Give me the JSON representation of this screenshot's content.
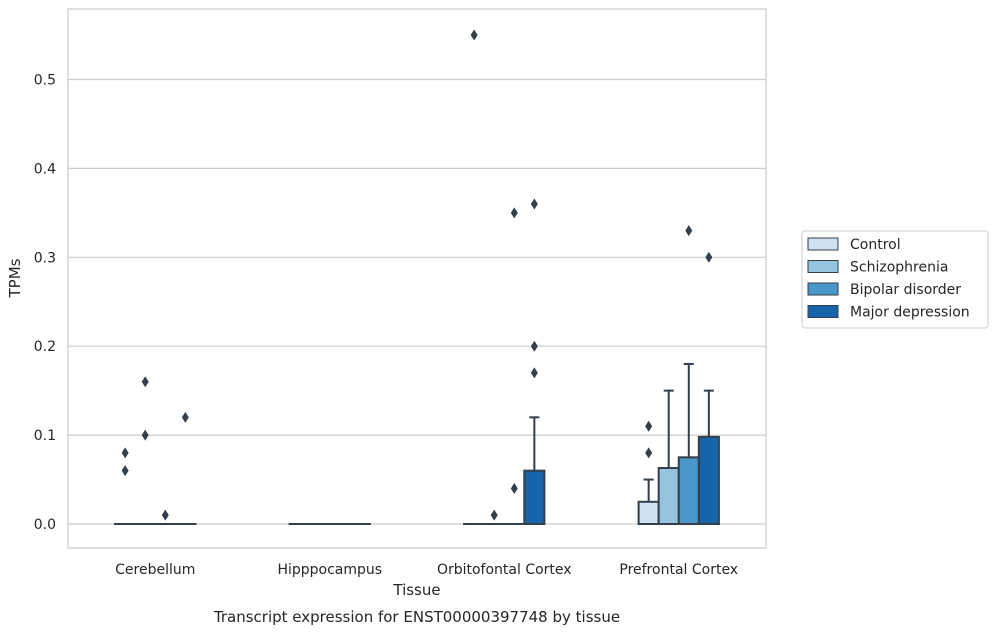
{
  "chart_data": {
    "type": "boxplot",
    "xlabel": "Tissue",
    "ylabel": "TPMs",
    "caption": "Transcript expression for ENST00000397748 by tissue",
    "ylim": [
      -0.027,
      0.58
    ],
    "yticks": [
      0.0,
      0.1,
      0.2,
      0.3,
      0.4,
      0.5
    ],
    "ytick_labels": [
      "0.0",
      "0.1",
      "0.2",
      "0.3",
      "0.4",
      "0.5"
    ],
    "grid": "horizontal",
    "legend_position": "center-right",
    "categories": [
      "Cerebellum",
      "Hipppocampus",
      "Orbitofontal Cortex",
      "Prefrontal Cortex"
    ],
    "series": [
      {
        "name": "Control",
        "color": "#d0e1f2",
        "boxes": [
          {
            "q1": 0,
            "median": 0,
            "q3": 0,
            "whisker_low": 0,
            "whisker_high": 0,
            "outliers": [
              0.06,
              0.08
            ]
          },
          {
            "q1": 0,
            "median": 0,
            "q3": 0,
            "whisker_low": 0,
            "whisker_high": 0,
            "outliers": []
          },
          {
            "q1": 0,
            "median": 0,
            "q3": 0,
            "whisker_low": 0,
            "whisker_high": 0,
            "outliers": [
              0.55
            ]
          },
          {
            "q1": 0,
            "median": 0,
            "q3": 0.025,
            "whisker_low": 0,
            "whisker_high": 0.05,
            "outliers": [
              0.08,
              0.11
            ]
          }
        ]
      },
      {
        "name": "Schizophrenia",
        "color": "#94c4df",
        "boxes": [
          {
            "q1": 0,
            "median": 0,
            "q3": 0,
            "whisker_low": 0,
            "whisker_high": 0,
            "outliers": [
              0.1,
              0.16
            ]
          },
          {
            "q1": 0,
            "median": 0,
            "q3": 0,
            "whisker_low": 0,
            "whisker_high": 0,
            "outliers": []
          },
          {
            "q1": 0,
            "median": 0,
            "q3": 0,
            "whisker_low": 0,
            "whisker_high": 0,
            "outliers": [
              0.01
            ]
          },
          {
            "q1": 0,
            "median": 0,
            "q3": 0.063,
            "whisker_low": 0,
            "whisker_high": 0.15,
            "outliers": []
          }
        ]
      },
      {
        "name": "Bipolar disorder",
        "color": "#4a98c9",
        "boxes": [
          {
            "q1": 0,
            "median": 0,
            "q3": 0,
            "whisker_low": 0,
            "whisker_high": 0,
            "outliers": [
              0.01
            ]
          },
          {
            "q1": 0,
            "median": 0,
            "q3": 0,
            "whisker_low": 0,
            "whisker_high": 0,
            "outliers": []
          },
          {
            "q1": 0,
            "median": 0,
            "q3": 0,
            "whisker_low": 0,
            "whisker_high": 0,
            "outliers": [
              0.04,
              0.35
            ]
          },
          {
            "q1": 0,
            "median": 0,
            "q3": 0.075,
            "whisker_low": 0,
            "whisker_high": 0.18,
            "outliers": [
              0.33
            ]
          }
        ]
      },
      {
        "name": "Major depression",
        "color": "#1764ab",
        "boxes": [
          {
            "q1": 0,
            "median": 0,
            "q3": 0,
            "whisker_low": 0,
            "whisker_high": 0,
            "outliers": [
              0.12
            ]
          },
          {
            "q1": 0,
            "median": 0,
            "q3": 0,
            "whisker_low": 0,
            "whisker_high": 0,
            "outliers": []
          },
          {
            "q1": 0,
            "median": 0,
            "q3": 0.06,
            "whisker_low": 0,
            "whisker_high": 0.12,
            "outliers": [
              0.17,
              0.2,
              0.36
            ]
          },
          {
            "q1": 0,
            "median": 0,
            "q3": 0.098,
            "whisker_low": 0,
            "whisker_high": 0.15,
            "outliers": [
              0.3
            ]
          }
        ]
      }
    ]
  }
}
